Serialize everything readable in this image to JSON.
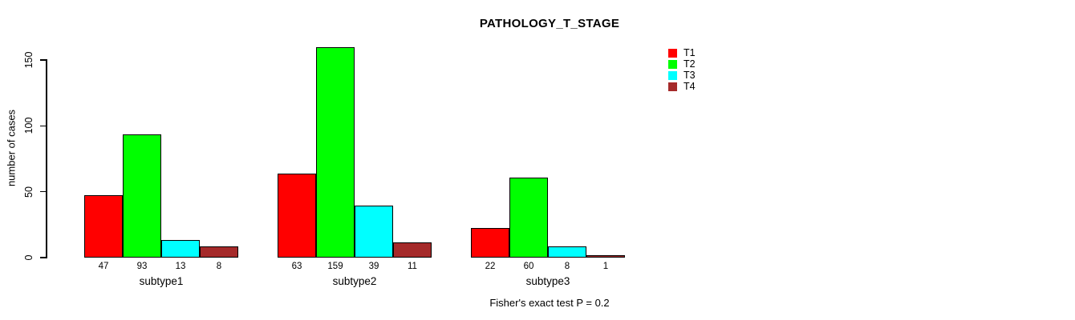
{
  "title": "PATHOLOGY_T_STAGE",
  "chart_data": {
    "type": "bar",
    "title": "PATHOLOGY_T_STAGE",
    "xlabel": "",
    "ylabel": "number of cases",
    "categories": [
      "subtype1",
      "subtype2",
      "subtype3"
    ],
    "series": [
      {
        "name": "T1",
        "color": "#FF0000",
        "values": [
          47,
          63,
          22
        ]
      },
      {
        "name": "T2",
        "color": "#00FF00",
        "values": [
          93,
          159,
          60
        ]
      },
      {
        "name": "T3",
        "color": "#00FFFF",
        "values": [
          13,
          39,
          8
        ]
      },
      {
        "name": "T4",
        "color": "#A52A2A",
        "values": [
          8,
          11,
          1
        ]
      }
    ],
    "bar_value_labels": [
      [
        47,
        93,
        13,
        8
      ],
      [
        63,
        159,
        39,
        11
      ],
      [
        22,
        60,
        8,
        1
      ]
    ],
    "yticks": [
      0,
      50,
      100,
      150
    ],
    "ylim": [
      0,
      159
    ],
    "grid": false,
    "legend_position": "right",
    "annotation": "Fisher's exact test P = 0.2",
    "bar_outline_color": "#000000",
    "background_color": "#FFFFFF"
  }
}
